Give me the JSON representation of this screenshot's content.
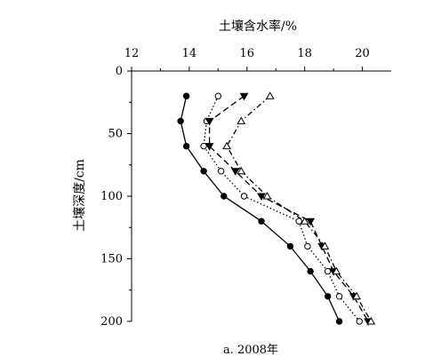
{
  "chart_data": {
    "type": "line",
    "xlabel": "土壤含水率/%",
    "ylabel": "土壤深度/cm",
    "caption": "a. 2008年",
    "xlim": [
      12,
      21
    ],
    "ylim": [
      0,
      200
    ],
    "x_axis_position": "top",
    "y_axis_inverted": true,
    "x_ticks": [
      12,
      14,
      16,
      18,
      20
    ],
    "y_ticks": [
      0,
      50,
      100,
      150,
      200
    ],
    "grid": false,
    "legend": "none",
    "series": [
      {
        "marker": "filled-circle",
        "line_style": "solid",
        "color": "#000000",
        "points": [
          [
            13.9,
            20
          ],
          [
            13.7,
            40
          ],
          [
            13.9,
            60
          ],
          [
            14.5,
            80
          ],
          [
            15.2,
            100
          ],
          [
            16.5,
            120
          ],
          [
            17.5,
            140
          ],
          [
            18.2,
            160
          ],
          [
            18.8,
            180
          ],
          [
            19.2,
            200
          ]
        ]
      },
      {
        "marker": "open-circle",
        "line_style": "dotted",
        "color": "#000000",
        "points": [
          [
            15.0,
            20
          ],
          [
            14.6,
            40
          ],
          [
            14.5,
            60
          ],
          [
            15.1,
            80
          ],
          [
            15.9,
            100
          ],
          [
            17.8,
            120
          ],
          [
            18.1,
            140
          ],
          [
            18.8,
            160
          ],
          [
            19.2,
            180
          ],
          [
            19.9,
            200
          ]
        ]
      },
      {
        "marker": "filled-triangle-down",
        "line_style": "dashed",
        "color": "#000000",
        "points": [
          [
            15.9,
            20
          ],
          [
            14.7,
            40
          ],
          [
            14.7,
            60
          ],
          [
            15.6,
            80
          ],
          [
            16.5,
            100
          ],
          [
            18.2,
            120
          ],
          [
            18.6,
            140
          ],
          [
            19.0,
            160
          ],
          [
            19.7,
            180
          ],
          [
            20.2,
            200
          ]
        ]
      },
      {
        "marker": "open-triangle-up",
        "line_style": "dash-dot",
        "color": "#000000",
        "points": [
          [
            16.8,
            20
          ],
          [
            15.8,
            40
          ],
          [
            15.3,
            60
          ],
          [
            15.8,
            80
          ],
          [
            16.7,
            100
          ],
          [
            18.0,
            120
          ],
          [
            18.7,
            140
          ],
          [
            19.1,
            160
          ],
          [
            19.8,
            180
          ],
          [
            20.3,
            200
          ]
        ]
      }
    ]
  }
}
